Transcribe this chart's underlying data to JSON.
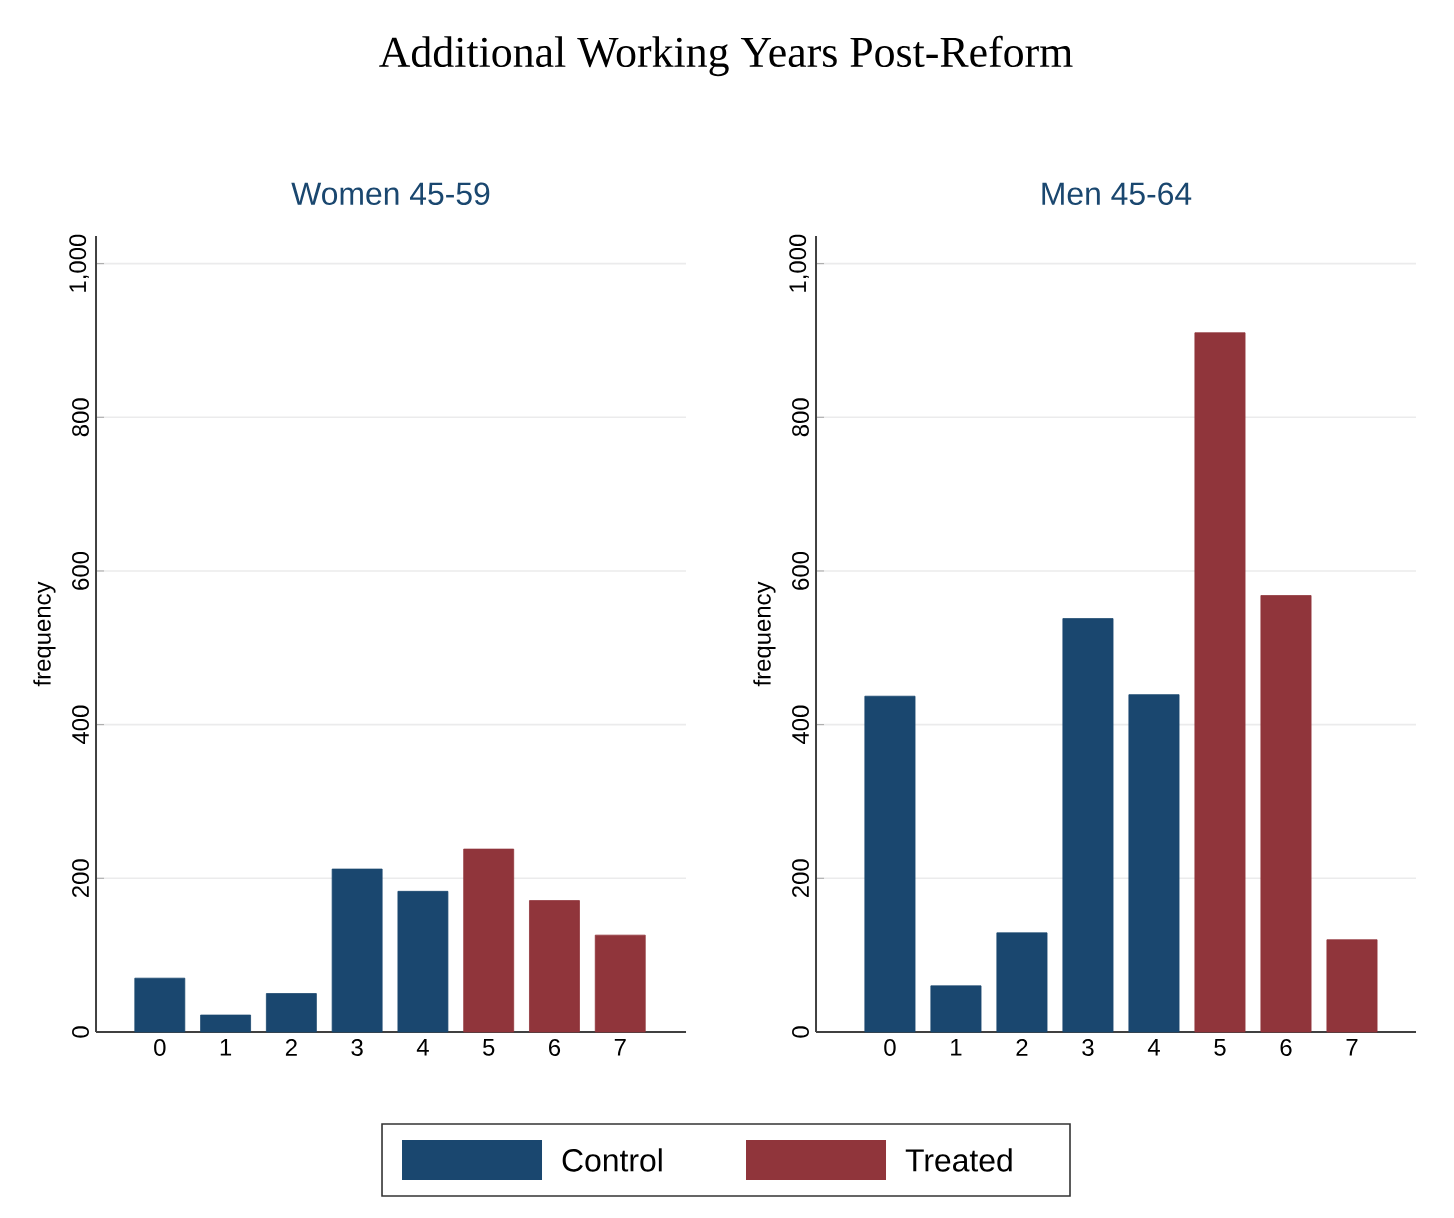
{
  "chart_data": [
    {
      "type": "bar",
      "title": "Additional Working Years Post-Reform",
      "subtitle": "Women 45-59",
      "ylabel": "frequency",
      "categories": [
        "0",
        "1",
        "2",
        "3",
        "4",
        "5",
        "6",
        "7"
      ],
      "series": [
        {
          "name": "Control",
          "color": "#1a476f",
          "values": [
            70,
            22,
            50,
            212,
            183,
            null,
            null,
            null
          ]
        },
        {
          "name": "Treated",
          "color": "#90353b",
          "values": [
            null,
            null,
            null,
            null,
            null,
            238,
            171,
            126
          ]
        }
      ],
      "ylim": [
        0,
        1036
      ],
      "yticks": [
        0,
        200,
        400,
        600,
        800,
        {
          "value": 1000,
          "label": "1,000"
        }
      ],
      "grid": "y",
      "legend": "bottom"
    },
    {
      "type": "bar",
      "subtitle": "Men 45-64",
      "ylabel": "frequency",
      "categories": [
        "0",
        "1",
        "2",
        "3",
        "4",
        "5",
        "6",
        "7"
      ],
      "series": [
        {
          "color": "#1a476f",
          "values": [
            437,
            60,
            129,
            538,
            439,
            null,
            null,
            null
          ]
        },
        {
          "color": "#90353b",
          "values": [
            null,
            null,
            null,
            null,
            null,
            910,
            568,
            120
          ]
        }
      ],
      "ylim": [
        0,
        1036
      ],
      "yticks": [
        0,
        200,
        400,
        600,
        800,
        {
          "value": 1000,
          "label": "1,000"
        }
      ],
      "grid": "y"
    }
  ]
}
